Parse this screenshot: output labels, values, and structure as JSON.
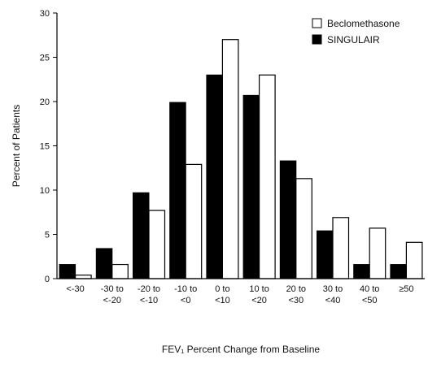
{
  "chart_data": {
    "type": "bar",
    "xlabel": "FEV₁ Percent Change from Baseline",
    "ylabel": "Percent of Patients",
    "ylim": [
      0,
      30
    ],
    "yticks": [
      0,
      5,
      10,
      15,
      20,
      25,
      30
    ],
    "grid": false,
    "legend_position": "top-right",
    "categories": [
      [
        "<-30"
      ],
      [
        "-30 to",
        "<-20"
      ],
      [
        "-20 to",
        "<-10"
      ],
      [
        "-10 to",
        "<0"
      ],
      [
        "0 to",
        "<10"
      ],
      [
        "10 to",
        "<20"
      ],
      [
        "20 to",
        "<30"
      ],
      [
        "30 to",
        "<40"
      ],
      [
        "40 to",
        "<50"
      ],
      [
        "≥50"
      ]
    ],
    "series": [
      {
        "name": "SINGULAIR",
        "color": "#000000",
        "fill": "solid",
        "values": [
          1.6,
          3.4,
          9.7,
          19.9,
          23.0,
          20.7,
          13.3,
          5.4,
          1.6,
          1.6
        ]
      },
      {
        "name": "Beclomethasone",
        "color": "#ffffff",
        "fill": "outline",
        "values": [
          0.4,
          1.6,
          7.7,
          12.9,
          27.0,
          23.0,
          11.3,
          6.9,
          5.7,
          4.1
        ]
      }
    ],
    "legend_order": [
      "Beclomethasone",
      "SINGULAIR"
    ]
  }
}
